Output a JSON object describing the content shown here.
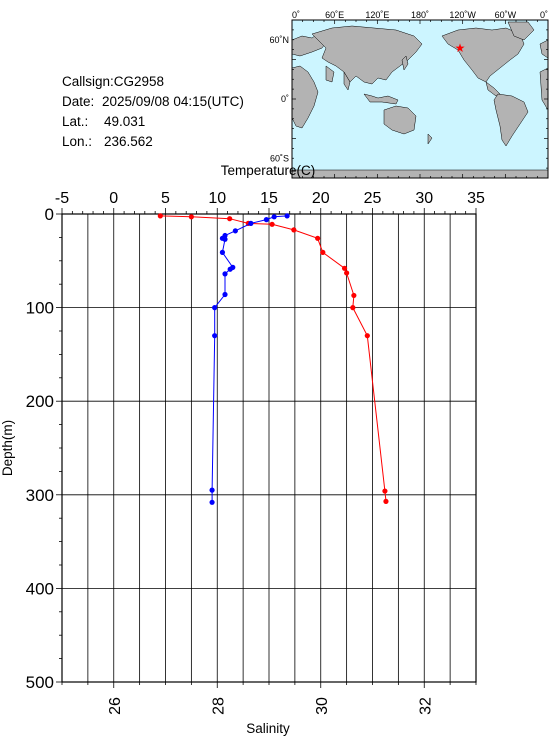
{
  "header": {
    "callsign_label": "Callsign:",
    "callsign": "CG2958",
    "date_label": "Date:",
    "date": "2025/09/08 04:15(UTC)",
    "lat_label": "Lat.:",
    "lat": "49.031",
    "lon_label": "Lon.:",
    "lon": "236.562"
  },
  "map": {
    "lon_ticks": [
      "0˚",
      "60˚E",
      "120˚E",
      "180˚",
      "120˚W",
      "60˚W",
      "0˚"
    ],
    "lat_ticks": [
      "60˚N",
      "0˚",
      "60˚S"
    ],
    "ocean_color": "#ccf5ff",
    "land_color": "#b3b3b3",
    "marker_color": "#ff0000",
    "marker": "star-icon"
  },
  "chart_data": {
    "type": "line",
    "title": "",
    "y_axis": {
      "label": "Depth(m)",
      "lim": [
        0,
        500
      ],
      "ticks": [
        0,
        100,
        200,
        300,
        400,
        500
      ],
      "inverted": true
    },
    "top_axis": {
      "label": "Temperature(C)",
      "lim": [
        -5,
        35
      ],
      "ticks": [
        -5,
        0,
        5,
        10,
        15,
        20,
        25,
        30,
        35
      ]
    },
    "bottom_axis": {
      "label": "Salinity",
      "lim": [
        25,
        33
      ],
      "ticks": [
        26,
        28,
        30,
        32
      ]
    },
    "grid": true,
    "series": [
      {
        "axis": "top",
        "color": "#ff0000",
        "points": [
          {
            "x": 4.5,
            "y": 2
          },
          {
            "x": 7.5,
            "y": 3
          },
          {
            "x": 11.2,
            "y": 5
          },
          {
            "x": 13.0,
            "y": 10
          },
          {
            "x": 15.3,
            "y": 11
          },
          {
            "x": 17.4,
            "y": 17
          },
          {
            "x": 19.7,
            "y": 26
          },
          {
            "x": 20.2,
            "y": 41
          },
          {
            "x": 22.3,
            "y": 58
          },
          {
            "x": 22.5,
            "y": 63
          },
          {
            "x": 23.2,
            "y": 87
          },
          {
            "x": 23.1,
            "y": 100
          },
          {
            "x": 24.5,
            "y": 130
          },
          {
            "x": 26.2,
            "y": 296
          },
          {
            "x": 26.3,
            "y": 307
          }
        ]
      },
      {
        "axis": "bottom",
        "color": "#0000ff",
        "points": [
          {
            "x": 29.35,
            "y": 2
          },
          {
            "x": 29.1,
            "y": 3
          },
          {
            "x": 28.95,
            "y": 6
          },
          {
            "x": 28.65,
            "y": 10
          },
          {
            "x": 28.35,
            "y": 18
          },
          {
            "x": 28.15,
            "y": 23
          },
          {
            "x": 28.1,
            "y": 26
          },
          {
            "x": 28.15,
            "y": 27
          },
          {
            "x": 28.1,
            "y": 41
          },
          {
            "x": 28.3,
            "y": 57
          },
          {
            "x": 28.25,
            "y": 59
          },
          {
            "x": 28.15,
            "y": 64
          },
          {
            "x": 28.15,
            "y": 86
          },
          {
            "x": 27.95,
            "y": 100
          },
          {
            "x": 27.95,
            "y": 130
          },
          {
            "x": 27.9,
            "y": 295
          },
          {
            "x": 27.9,
            "y": 308
          }
        ]
      }
    ]
  }
}
